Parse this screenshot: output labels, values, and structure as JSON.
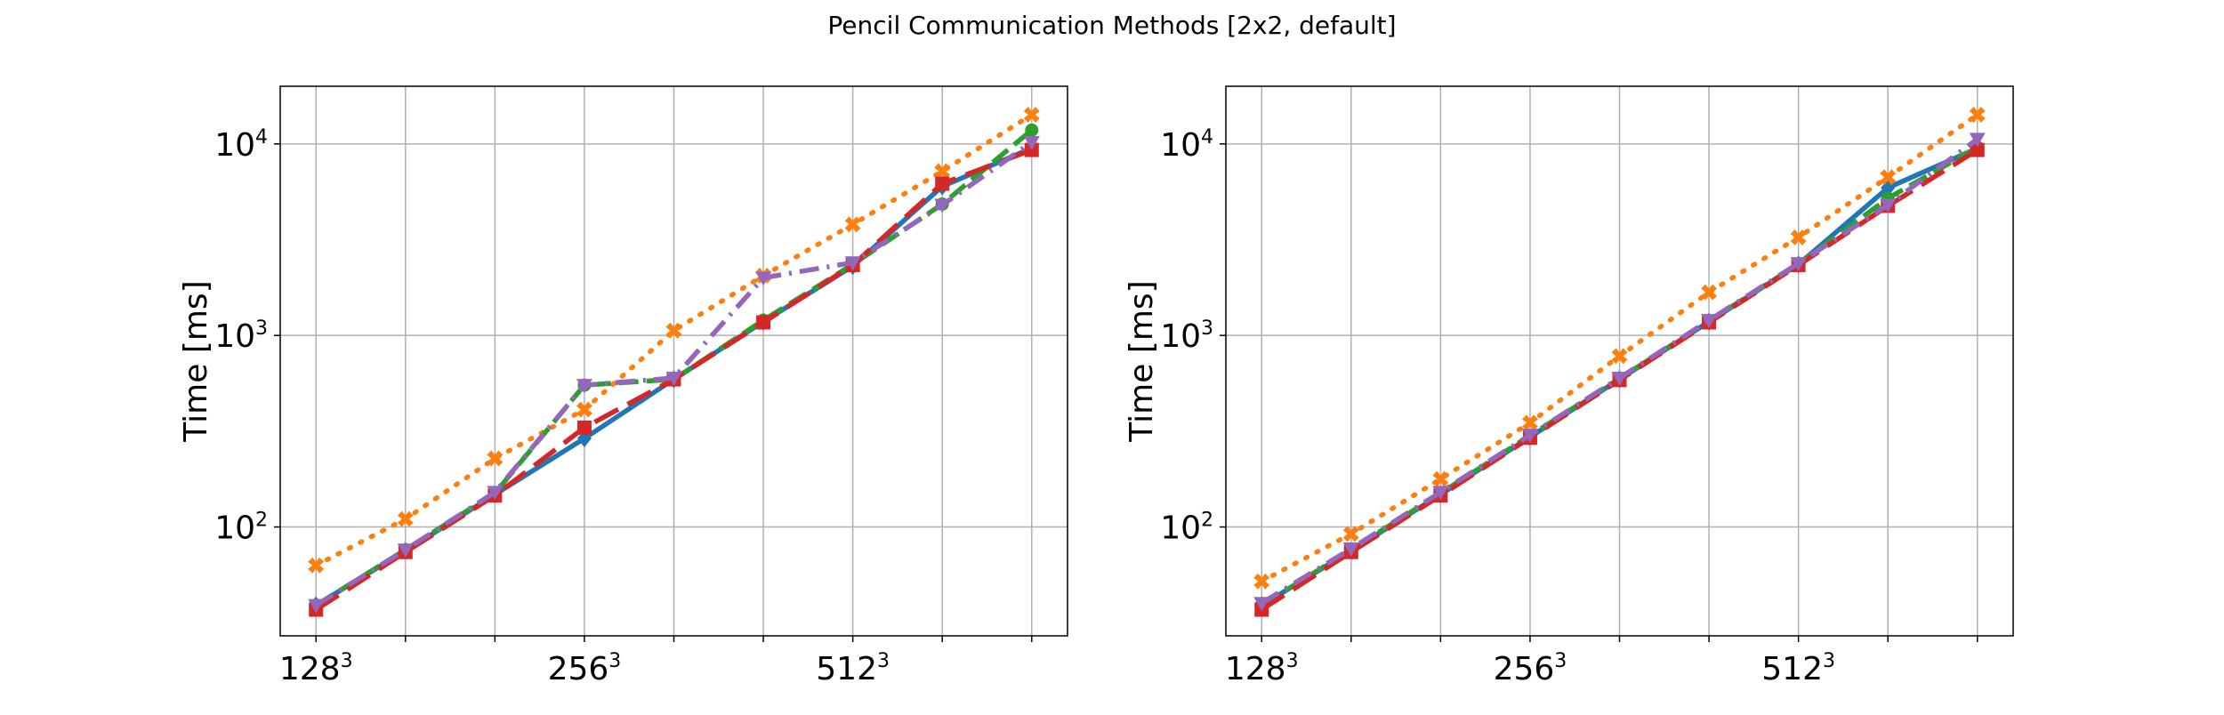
{
  "figure": {
    "title": "Pencil Communication Methods [2x2, default]"
  },
  "chart_data": [
    {
      "type": "line",
      "ylabel": "Time [ms]",
      "yscale": "log",
      "ylim": [
        27,
        20000
      ],
      "xlim": [
        -0.4,
        8.4
      ],
      "x": [
        0,
        1,
        2,
        3,
        4,
        5,
        6,
        7,
        8
      ],
      "x_ticks": [
        {
          "pos": 0,
          "base": "128",
          "exp": "3"
        },
        {
          "pos": 3,
          "base": "256",
          "exp": "3"
        },
        {
          "pos": 6,
          "base": "512",
          "exp": "3"
        }
      ],
      "y_ticks": [
        {
          "value": 100,
          "base": "10",
          "exp": "2"
        },
        {
          "value": 1000,
          "base": "10",
          "exp": "3"
        },
        {
          "value": 10000,
          "base": "10",
          "exp": "4"
        }
      ],
      "grid": true,
      "series": [
        {
          "color": "#1f77b4",
          "style": "solid",
          "marker": "diamond",
          "values": [
            39,
            75,
            148,
            290,
            590,
            1180,
            2300,
            6000,
            9500
          ]
        },
        {
          "color": "#ff7f0e",
          "style": "dotted",
          "marker": "x",
          "values": [
            63,
            110,
            228,
            410,
            1060,
            2050,
            3800,
            7200,
            14200
          ]
        },
        {
          "color": "#2ca02c",
          "style": "dashed",
          "marker": "circle",
          "values": [
            39,
            76,
            150,
            550,
            590,
            1200,
            2350,
            4850,
            11800
          ]
        },
        {
          "color": "#d62728",
          "style": "longdash",
          "marker": "square",
          "values": [
            37,
            74,
            146,
            330,
            590,
            1170,
            2330,
            6200,
            9300
          ]
        },
        {
          "color": "#9467bd",
          "style": "dashdot",
          "marker": "triangle-down",
          "values": [
            39,
            76,
            152,
            550,
            600,
            2000,
            2400,
            4800,
            10200
          ]
        }
      ]
    },
    {
      "type": "line",
      "ylabel": "Time [ms]",
      "yscale": "log",
      "ylim": [
        27,
        20000
      ],
      "xlim": [
        -0.4,
        8.4
      ],
      "x": [
        0,
        1,
        2,
        3,
        4,
        5,
        6,
        7,
        8
      ],
      "x_ticks": [
        {
          "pos": 0,
          "base": "128",
          "exp": "3"
        },
        {
          "pos": 3,
          "base": "256",
          "exp": "3"
        },
        {
          "pos": 6,
          "base": "512",
          "exp": "3"
        }
      ],
      "y_ticks": [
        {
          "value": 100,
          "base": "10",
          "exp": "2"
        },
        {
          "value": 1000,
          "base": "10",
          "exp": "3"
        },
        {
          "value": 10000,
          "base": "10",
          "exp": "4"
        }
      ],
      "grid": true,
      "series": [
        {
          "color": "#1f77b4",
          "style": "solid",
          "marker": "diamond",
          "values": [
            39,
            75,
            148,
            295,
            590,
            1180,
            2350,
            5900,
            9500
          ]
        },
        {
          "color": "#ff7f0e",
          "style": "dotted",
          "marker": "x",
          "values": [
            52,
            92,
            178,
            350,
            780,
            1680,
            3250,
            6700,
            14200
          ]
        },
        {
          "color": "#2ca02c",
          "style": "dashed",
          "marker": "circle",
          "values": [
            39,
            76,
            150,
            300,
            595,
            1190,
            2360,
            5200,
            9600
          ]
        },
        {
          "color": "#d62728",
          "style": "longdash",
          "marker": "square",
          "values": [
            37,
            74,
            146,
            292,
            585,
            1170,
            2330,
            4750,
            9300
          ]
        },
        {
          "color": "#9467bd",
          "style": "dashdot",
          "marker": "triangle-down",
          "values": [
            40,
            77,
            152,
            302,
            600,
            1200,
            2380,
            4800,
            10600
          ]
        }
      ]
    }
  ]
}
